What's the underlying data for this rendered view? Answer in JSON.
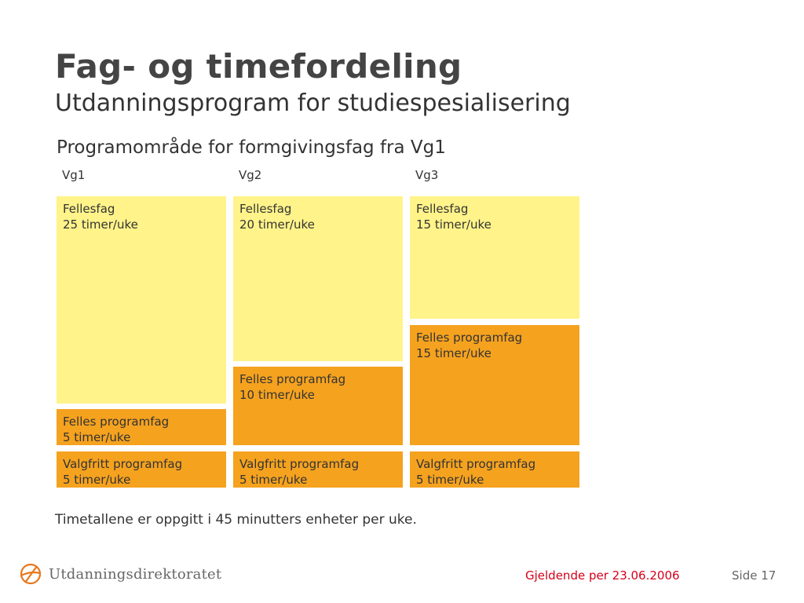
{
  "slide": {
    "title": "Fag- og timefordeling",
    "subtitle": "Utdanningsprogram for studiespesialisering",
    "program_area": "Programområde for formgivingsfag fra Vg1"
  },
  "columns": [
    {
      "label": "Vg1",
      "blocks": [
        {
          "line1": "Fellesfag",
          "line2": "25 timer/uke",
          "hours": 25,
          "kind": "fellesfag"
        },
        {
          "line1": "Felles programfag",
          "line2": "5 timer/uke",
          "hours": 5,
          "kind": "program"
        },
        {
          "line1": "Valgfritt programfag",
          "line2": "5 timer/uke",
          "hours": 5,
          "kind": "program"
        }
      ]
    },
    {
      "label": "Vg2",
      "blocks": [
        {
          "line1": "Fellesfag",
          "line2": "20 timer/uke",
          "hours": 20,
          "kind": "fellesfag"
        },
        {
          "line1": "Felles programfag",
          "line2": "10 timer/uke",
          "hours": 10,
          "kind": "program"
        },
        {
          "line1": "Valgfritt programfag",
          "line2": "5 timer/uke",
          "hours": 5,
          "kind": "program"
        }
      ]
    },
    {
      "label": "Vg3",
      "blocks": [
        {
          "line1": "Fellesfag",
          "line2": "15 timer/uke",
          "hours": 15,
          "kind": "fellesfag"
        },
        {
          "line1": "Felles programfag",
          "line2": "15 timer/uke",
          "hours": 15,
          "kind": "program"
        },
        {
          "line1": "Valgfritt programfag",
          "line2": "5 timer/uke",
          "hours": 5,
          "kind": "program"
        }
      ]
    }
  ],
  "note": "Timetallene er oppgitt i 45 minutters enheter per uke.",
  "footer": {
    "logo_text": "Utdanningsdirektoratet",
    "logo_icon": "utdanningsdirektoratet-logo-icon",
    "effective_date": "Gjeldende per 23.06.2006",
    "page_label": "Side 17"
  },
  "colors": {
    "fellesfag": "#fff38a",
    "programfag": "#f5a21f",
    "footer_date": "#d4001a",
    "logo": "#e8781e"
  }
}
